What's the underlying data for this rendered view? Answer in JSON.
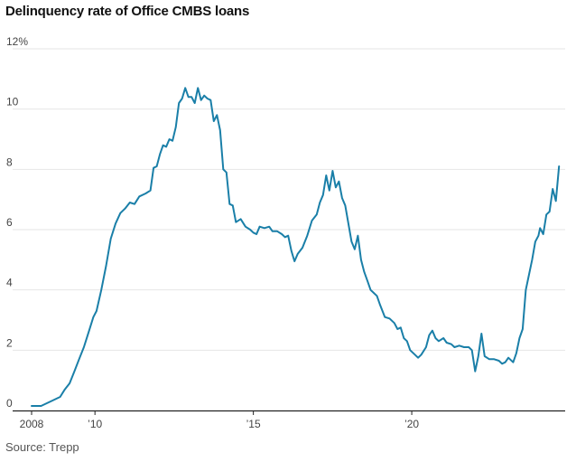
{
  "title": "Delinquency rate of Office CMBS loans",
  "source": "Source: Trepp",
  "colors": {
    "line": "#1a7fa8",
    "grid": "#e6e6e6",
    "axis": "#222222",
    "text": "#444444"
  },
  "chart_data": {
    "type": "line",
    "title": "Delinquency rate of Office CMBS loans",
    "xlabel": "",
    "ylabel": "",
    "ylim": [
      0,
      12
    ],
    "xlim": [
      2008.0,
      2024.7
    ],
    "grid": true,
    "yticks": [
      {
        "value": 0,
        "label": "0"
      },
      {
        "value": 2,
        "label": "2"
      },
      {
        "value": 4,
        "label": "4"
      },
      {
        "value": 6,
        "label": "6"
      },
      {
        "value": 8,
        "label": "8"
      },
      {
        "value": 10,
        "label": "10"
      },
      {
        "value": 12,
        "label": "12%"
      }
    ],
    "xticks": [
      {
        "value": 2008,
        "label": "2008"
      },
      {
        "value": 2010,
        "label": "’10"
      },
      {
        "value": 2015,
        "label": "’15"
      },
      {
        "value": 2020,
        "label": "’20"
      }
    ],
    "series": [
      {
        "name": "",
        "points": [
          [
            2008.0,
            0.15
          ],
          [
            2008.3,
            0.15
          ],
          [
            2008.6,
            0.3
          ],
          [
            2008.9,
            0.45
          ],
          [
            2009.05,
            0.7
          ],
          [
            2009.2,
            0.9
          ],
          [
            2009.35,
            1.3
          ],
          [
            2009.5,
            1.7
          ],
          [
            2009.65,
            2.1
          ],
          [
            2009.8,
            2.6
          ],
          [
            2009.95,
            3.1
          ],
          [
            2010.05,
            3.3
          ],
          [
            2010.2,
            4.0
          ],
          [
            2010.35,
            4.8
          ],
          [
            2010.5,
            5.7
          ],
          [
            2010.65,
            6.2
          ],
          [
            2010.8,
            6.55
          ],
          [
            2010.95,
            6.7
          ],
          [
            2011.1,
            6.9
          ],
          [
            2011.25,
            6.85
          ],
          [
            2011.4,
            7.1
          ],
          [
            2011.6,
            7.2
          ],
          [
            2011.75,
            7.3
          ],
          [
            2011.85,
            8.05
          ],
          [
            2011.95,
            8.1
          ],
          [
            2012.05,
            8.5
          ],
          [
            2012.15,
            8.8
          ],
          [
            2012.25,
            8.75
          ],
          [
            2012.35,
            9.0
          ],
          [
            2012.45,
            8.95
          ],
          [
            2012.55,
            9.4
          ],
          [
            2012.65,
            10.2
          ],
          [
            2012.75,
            10.35
          ],
          [
            2012.85,
            10.7
          ],
          [
            2012.95,
            10.4
          ],
          [
            2013.05,
            10.4
          ],
          [
            2013.15,
            10.2
          ],
          [
            2013.25,
            10.7
          ],
          [
            2013.35,
            10.3
          ],
          [
            2013.45,
            10.45
          ],
          [
            2013.55,
            10.35
          ],
          [
            2013.65,
            10.3
          ],
          [
            2013.75,
            9.6
          ],
          [
            2013.85,
            9.8
          ],
          [
            2013.95,
            9.3
          ],
          [
            2014.05,
            8.0
          ],
          [
            2014.15,
            7.9
          ],
          [
            2014.25,
            6.85
          ],
          [
            2014.35,
            6.8
          ],
          [
            2014.45,
            6.25
          ],
          [
            2014.6,
            6.35
          ],
          [
            2014.75,
            6.1
          ],
          [
            2014.9,
            6.0
          ],
          [
            2015.0,
            5.9
          ],
          [
            2015.1,
            5.85
          ],
          [
            2015.2,
            6.1
          ],
          [
            2015.35,
            6.05
          ],
          [
            2015.5,
            6.1
          ],
          [
            2015.6,
            5.95
          ],
          [
            2015.75,
            5.95
          ],
          [
            2015.9,
            5.85
          ],
          [
            2016.0,
            5.75
          ],
          [
            2016.1,
            5.8
          ],
          [
            2016.2,
            5.3
          ],
          [
            2016.3,
            4.95
          ],
          [
            2016.4,
            5.2
          ],
          [
            2016.55,
            5.4
          ],
          [
            2016.7,
            5.8
          ],
          [
            2016.85,
            6.3
          ],
          [
            2017.0,
            6.5
          ],
          [
            2017.1,
            6.9
          ],
          [
            2017.2,
            7.15
          ],
          [
            2017.3,
            7.8
          ],
          [
            2017.4,
            7.3
          ],
          [
            2017.5,
            7.95
          ],
          [
            2017.6,
            7.4
          ],
          [
            2017.7,
            7.6
          ],
          [
            2017.8,
            7.05
          ],
          [
            2017.9,
            6.8
          ],
          [
            2018.0,
            6.2
          ],
          [
            2018.1,
            5.6
          ],
          [
            2018.2,
            5.35
          ],
          [
            2018.3,
            5.8
          ],
          [
            2018.4,
            5.0
          ],
          [
            2018.5,
            4.6
          ],
          [
            2018.6,
            4.3
          ],
          [
            2018.7,
            4.0
          ],
          [
            2018.8,
            3.9
          ],
          [
            2018.9,
            3.8
          ],
          [
            2019.0,
            3.5
          ],
          [
            2019.15,
            3.1
          ],
          [
            2019.3,
            3.05
          ],
          [
            2019.45,
            2.9
          ],
          [
            2019.55,
            2.7
          ],
          [
            2019.65,
            2.75
          ],
          [
            2019.75,
            2.4
          ],
          [
            2019.85,
            2.3
          ],
          [
            2019.95,
            2.0
          ],
          [
            2020.1,
            1.85
          ],
          [
            2020.2,
            1.75
          ],
          [
            2020.3,
            1.85
          ],
          [
            2020.45,
            2.1
          ],
          [
            2020.55,
            2.5
          ],
          [
            2020.65,
            2.65
          ],
          [
            2020.75,
            2.4
          ],
          [
            2020.85,
            2.3
          ],
          [
            2021.0,
            2.4
          ],
          [
            2021.1,
            2.25
          ],
          [
            2021.25,
            2.2
          ],
          [
            2021.35,
            2.1
          ],
          [
            2021.5,
            2.15
          ],
          [
            2021.65,
            2.1
          ],
          [
            2021.8,
            2.1
          ],
          [
            2021.9,
            2.0
          ],
          [
            2022.0,
            1.3
          ],
          [
            2022.1,
            1.8
          ],
          [
            2022.2,
            2.55
          ],
          [
            2022.3,
            1.8
          ],
          [
            2022.45,
            1.7
          ],
          [
            2022.6,
            1.7
          ],
          [
            2022.75,
            1.65
          ],
          [
            2022.85,
            1.55
          ],
          [
            2022.95,
            1.6
          ],
          [
            2023.05,
            1.75
          ],
          [
            2023.2,
            1.6
          ],
          [
            2023.3,
            1.9
          ],
          [
            2023.4,
            2.4
          ],
          [
            2023.5,
            2.7
          ],
          [
            2023.6,
            4.0
          ],
          [
            2023.7,
            4.5
          ],
          [
            2023.8,
            5.0
          ],
          [
            2023.9,
            5.6
          ],
          [
            2024.0,
            5.8
          ],
          [
            2024.05,
            6.05
          ],
          [
            2024.15,
            5.85
          ],
          [
            2024.25,
            6.5
          ],
          [
            2024.35,
            6.6
          ],
          [
            2024.45,
            7.35
          ],
          [
            2024.55,
            6.95
          ],
          [
            2024.65,
            8.1
          ]
        ]
      }
    ]
  }
}
